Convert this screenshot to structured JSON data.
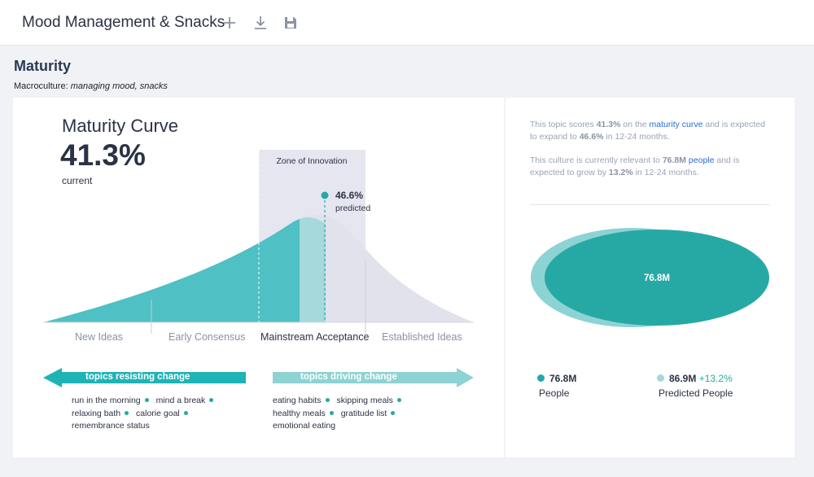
{
  "header": {
    "title": "Mood Management & Snacks",
    "icons": [
      "plus-icon",
      "download-icon",
      "save-icon"
    ]
  },
  "section": {
    "title": "Maturity",
    "macro_label": "Macroculture:",
    "macro_value": "managing mood, snacks"
  },
  "maturity": {
    "title": "Maturity Curve",
    "value": "41.3%",
    "value_caption": "current",
    "zone_label": "Zone of Innovation",
    "predicted_value": "46.6%",
    "predicted_caption": "predicted",
    "current_fraction": 0.413,
    "predicted_fraction": 0.466,
    "stages": [
      "New Ideas",
      "Early Consensus",
      "Mainstream Acceptance",
      "Established Ideas"
    ],
    "active_stage": "Mainstream Acceptance"
  },
  "arrows": {
    "resisting": "topics resisting change",
    "driving": "topics driving change"
  },
  "topics": {
    "resisting": [
      [
        "run in the morning",
        "mind a break"
      ],
      [
        "relaxing bath",
        "calorie goal"
      ],
      [
        "remembrance status"
      ]
    ],
    "driving": [
      [
        "eating habits",
        "skipping meals"
      ],
      [
        "healthy meals",
        "gratitude list"
      ],
      [
        "emotional eating"
      ]
    ]
  },
  "description": {
    "p1": {
      "t1": "This topic scores ",
      "score": "41.3%",
      "t2": " on the ",
      "link": "maturity curve",
      "t3": " and is expected to expand to ",
      "expand": "46.6%",
      "t4": " in 12-24 months."
    },
    "p2": {
      "t1": "This culture is currently relevant to ",
      "people": "76.8M",
      "link": "people",
      "t2": " and is expected to grow by ",
      "growth": "13.2%",
      "t3": " in 12-24 months."
    }
  },
  "people_chart": {
    "center_label": "76.8M",
    "current": {
      "value": "76.8M",
      "label": "People"
    },
    "predicted": {
      "value": "86.9M",
      "delta": "+13.2%",
      "label": "Predicted People"
    }
  },
  "colors": {
    "teal": "#26a9a5",
    "teal_light": "#4fc0c4",
    "teal_pale": "#8ed3d4",
    "curve_grey": "#e1e2ec",
    "zone": "#e6e6f0",
    "text": "#2b3245",
    "muted": "#9aa3b5",
    "link": "#2a6bd6"
  }
}
